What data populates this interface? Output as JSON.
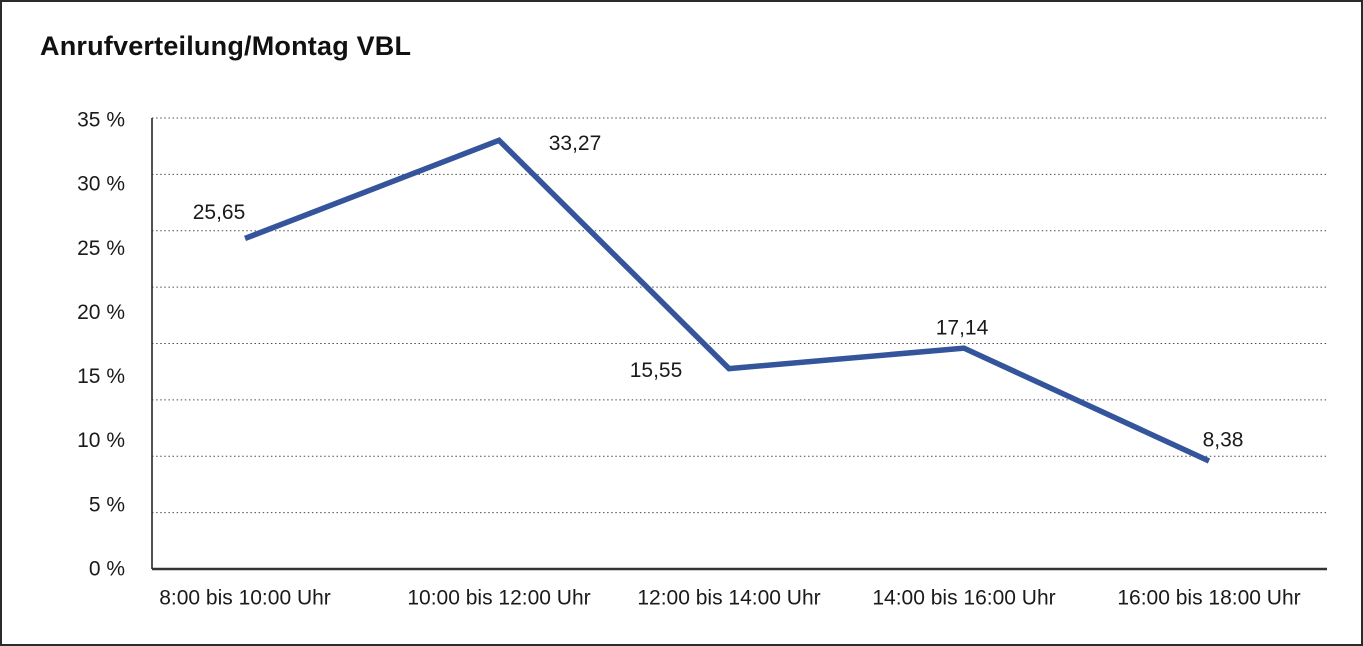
{
  "frame": {
    "background": "#ffffff",
    "border_color": "#2b2b2b"
  },
  "chart_data": {
    "type": "line",
    "title": "Anrufverteilung/Montag VBL",
    "categories": [
      "8:00 bis 10:00 Uhr",
      "10:00 bis 12:00 Uhr",
      "12:00 bis 14:00 Uhr",
      "14:00 bis 16:00 Uhr",
      "16:00 bis 18:00 Uhr"
    ],
    "values": [
      25.65,
      33.27,
      15.55,
      17.14,
      8.38
    ],
    "value_labels": [
      "25,65",
      "33,27",
      "15,55",
      "17,14",
      "8,38"
    ],
    "y_tick_labels": [
      "35 %",
      "30 %",
      "25 %",
      "20 %",
      "15 %",
      "10 %",
      "5 %",
      "0 %"
    ],
    "ylim": [
      0,
      35
    ],
    "y_tick_step": 5,
    "xlabel": "",
    "ylabel": "",
    "grid": "horizontal-dotted",
    "legend": "none",
    "line_color": "#34549C",
    "text_color": "#1a1a1a",
    "grid_color": "#4d4d4d",
    "axis_color": "#333333"
  }
}
